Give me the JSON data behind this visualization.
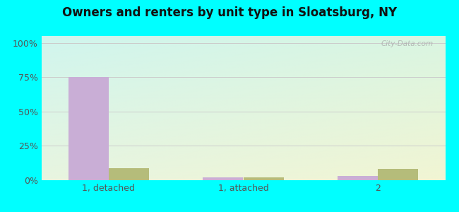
{
  "title": "Owners and renters by unit type in Sloatsburg, NY",
  "categories": [
    "1, detached",
    "1, attached",
    "2"
  ],
  "owner_values": [
    75,
    2,
    3
  ],
  "renter_values": [
    9,
    2,
    8
  ],
  "owner_color": "#c9aed6",
  "renter_color": "#b5bc7a",
  "yticks": [
    0,
    25,
    50,
    75,
    100
  ],
  "ytick_labels": [
    "0%",
    "25%",
    "50%",
    "75%",
    "100%"
  ],
  "ylim": [
    0,
    105
  ],
  "bar_width": 0.3,
  "title_fontsize": 12,
  "tick_fontsize": 9,
  "legend_fontsize": 9,
  "watermark": "City-Data.com",
  "fig_bg_color": "#00ffff",
  "grid_color": "#cccccc",
  "bg_color_topleft": "#cdf5ee",
  "bg_color_bottomright": "#e8f5e0"
}
